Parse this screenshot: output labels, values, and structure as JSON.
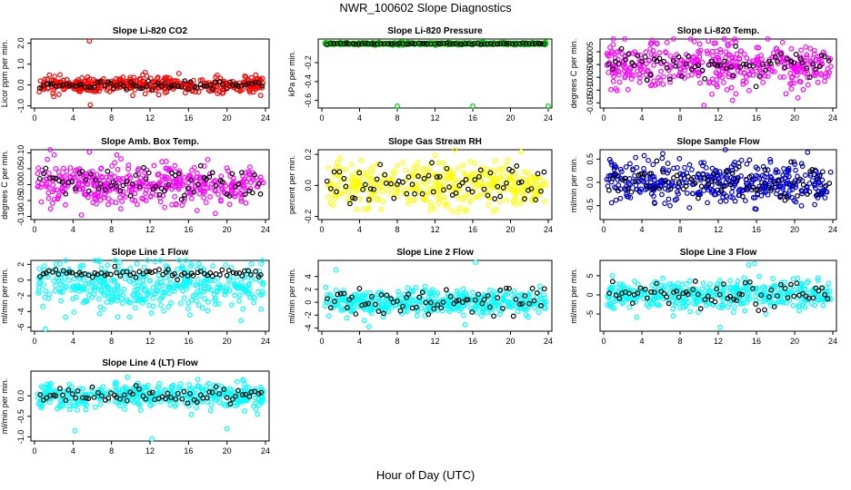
{
  "title": "NWR_100602  Slope Diagnostics",
  "xlabel": "Hour of Day (UTC)",
  "chart_data": [
    {
      "type": "scatter",
      "title": "Slope Li-820 CO2",
      "ylabel": "Licor ppm per min.",
      "xlim": [
        0,
        24
      ],
      "ylim": [
        -1.1,
        2.2
      ],
      "xticks": [
        0,
        4,
        8,
        12,
        16,
        20,
        24
      ],
      "yticks": [
        -1.0,
        0.0,
        1.0,
        2.0
      ],
      "ytick_labels": [
        "-1.0",
        "0.0",
        "1.0",
        "2.0"
      ],
      "color": "#ff0000",
      "mean": 0.0,
      "spread": 0.18,
      "n": 420,
      "black_n": 70,
      "black_spread": 0.12,
      "outliers": [
        [
          5.7,
          2.1
        ],
        [
          2.0,
          -0.55
        ],
        [
          5.8,
          -0.95
        ],
        [
          11.5,
          0.6
        ],
        [
          15.0,
          0.55
        ],
        [
          23.5,
          -0.5
        ],
        [
          10.2,
          -0.5
        ]
      ]
    },
    {
      "type": "scatter",
      "title": "Slope Li-820 Pressure",
      "ylabel": "kPa per min.",
      "xlim": [
        0,
        24
      ],
      "ylim": [
        -0.68,
        0.05
      ],
      "xticks": [
        0,
        4,
        8,
        12,
        16,
        20,
        24
      ],
      "yticks": [
        -0.6,
        -0.4,
        -0.2
      ],
      "ytick_labels": [
        "-0.6",
        "-0.4",
        "-0.2"
      ],
      "color": "#00cc00",
      "mean": 0.0,
      "spread": 0.006,
      "n": 420,
      "black_n": 70,
      "black_spread": 0.004,
      "outliers": [
        [
          8.0,
          -0.66
        ],
        [
          16.0,
          -0.66
        ],
        [
          24.0,
          -0.66
        ]
      ]
    },
    {
      "type": "scatter",
      "title": "Slope Li-820 Temp.",
      "ylabel": "degrees C per min.",
      "xlim": [
        0,
        24
      ],
      "ylim": [
        -0.017,
        0.01
      ],
      "xticks": [
        0,
        4,
        8,
        12,
        16,
        20,
        24
      ],
      "yticks": [
        -0.015,
        -0.01,
        -0.005,
        0.0,
        0.005
      ],
      "ytick_labels": [
        "-0.015",
        "-0.010",
        "-0.005",
        "0.000",
        "0.005"
      ],
      "color": "#ff00ff",
      "mean": 0.0,
      "spread": 0.0045,
      "n": 420,
      "black_n": 70,
      "black_spread": 0.003,
      "outliers": [
        [
          10.5,
          -0.016
        ],
        [
          13.5,
          -0.014
        ],
        [
          9.5,
          0.009
        ]
      ]
    },
    {
      "type": "scatter",
      "title": "Slope Amb. Box Temp.",
      "ylabel": "degrees C per min.",
      "xlim": [
        0,
        24
      ],
      "ylim": [
        -0.11,
        0.11
      ],
      "xticks": [
        0,
        4,
        8,
        12,
        16,
        20,
        24
      ],
      "yticks": [
        -0.1,
        -0.05,
        0.0,
        0.05,
        0.1
      ],
      "ytick_labels": [
        "-0.10",
        "-0.05",
        "0.00",
        "0.05",
        "0.10"
      ],
      "color": "#ff00ff",
      "mean": 0.0,
      "spread": 0.035,
      "n": 420,
      "black_n": 70,
      "black_spread": 0.025,
      "outliers": []
    },
    {
      "type": "scatter",
      "title": "Slope Gas Stream RH",
      "ylabel": "percent per min.",
      "xlim": [
        0,
        24
      ],
      "ylim": [
        -0.22,
        0.23
      ],
      "xticks": [
        0,
        4,
        8,
        12,
        16,
        20,
        24
      ],
      "yticks": [
        -0.2,
        0.0,
        0.2
      ],
      "ytick_labels": [
        "-0.2",
        "0.0",
        "0.2"
      ],
      "color": "#ffff00",
      "mean": 0.0,
      "spread": 0.07,
      "n": 420,
      "black_n": 70,
      "black_spread": 0.06,
      "outliers": []
    },
    {
      "type": "scatter",
      "title": "Slope Sample Flow",
      "ylabel": "ml/min per min.",
      "xlim": [
        0,
        24
      ],
      "ylim": [
        -0.8,
        0.7
      ],
      "xticks": [
        0,
        4,
        8,
        12,
        16,
        20,
        24
      ],
      "yticks": [
        -0.5,
        0.0,
        0.5
      ],
      "ytick_labels": [
        "-0.5",
        "0.0",
        "0.5"
      ],
      "color": "#0000cc",
      "mean": 0.0,
      "spread": 0.22,
      "n": 420,
      "black_n": 70,
      "black_spread": 0.18,
      "outliers": []
    },
    {
      "type": "scatter",
      "title": "Slope Line 1 Flow",
      "ylabel": "ml/min per min.",
      "xlim": [
        0,
        24
      ],
      "ylim": [
        -6.5,
        2.5
      ],
      "xticks": [
        0,
        4,
        8,
        12,
        16,
        20,
        24
      ],
      "yticks": [
        -6,
        -4,
        -2,
        0,
        2
      ],
      "ytick_labels": [
        "-6",
        "-4",
        "-2",
        "0",
        "2"
      ],
      "color": "#00ffff",
      "mean": -0.7,
      "spread": 1.6,
      "n": 420,
      "black_n": 70,
      "black_spread": 0.25,
      "black_mean": 0.8,
      "outliers": []
    },
    {
      "type": "scatter",
      "title": "Slope Line 2 Flow",
      "ylabel": "ml/min per min.",
      "xlim": [
        0,
        24
      ],
      "ylim": [
        -4.5,
        6.5
      ],
      "xticks": [
        0,
        4,
        8,
        12,
        16,
        20,
        24
      ],
      "yticks": [
        -4,
        -2,
        0,
        2,
        4
      ],
      "ytick_labels": [
        "-4",
        "-2",
        "0",
        "2",
        "4"
      ],
      "color": "#00ffff",
      "mean": 0.0,
      "spread": 0.9,
      "n": 420,
      "black_n": 70,
      "black_spread": 1.2,
      "outliers": [
        [
          1.5,
          5.0
        ],
        [
          16.3,
          6.2
        ],
        [
          5.0,
          -3.8
        ],
        [
          15.2,
          -3.5
        ]
      ]
    },
    {
      "type": "scatter",
      "title": "Slope Line 3 Flow",
      "ylabel": "ml/min per min.",
      "xlim": [
        0,
        24
      ],
      "ylim": [
        -9.5,
        9
      ],
      "xticks": [
        0,
        4,
        8,
        12,
        16,
        20,
        24
      ],
      "yticks": [
        -5,
        0,
        5
      ],
      "ytick_labels": [
        "-5",
        "0",
        "5"
      ],
      "color": "#00ffff",
      "mean": 0.0,
      "spread": 1.8,
      "n": 420,
      "black_n": 70,
      "black_spread": 1.6,
      "outliers": [
        [
          15.2,
          7.8
        ],
        [
          15.8,
          8.2
        ],
        [
          12.2,
          -8.5
        ],
        [
          17.0,
          -5.0
        ]
      ]
    },
    {
      "type": "scatter",
      "title": "Slope Line 4 (LT) Flow",
      "ylabel": "ml/min per min.",
      "xlim": [
        0,
        24
      ],
      "ylim": [
        -1.1,
        0.6
      ],
      "xticks": [
        0,
        4,
        8,
        12,
        16,
        20,
        24
      ],
      "yticks": [
        -1.0,
        -0.5,
        0.0
      ],
      "ytick_labels": [
        "-1.0",
        "-0.5",
        "0.0"
      ],
      "color": "#00ffff",
      "mean": 0.0,
      "spread": 0.15,
      "n": 420,
      "black_n": 70,
      "black_spread": 0.1,
      "outliers": [
        [
          4.2,
          -0.85
        ],
        [
          12.2,
          -1.05
        ],
        [
          20.0,
          -0.8
        ]
      ]
    }
  ]
}
